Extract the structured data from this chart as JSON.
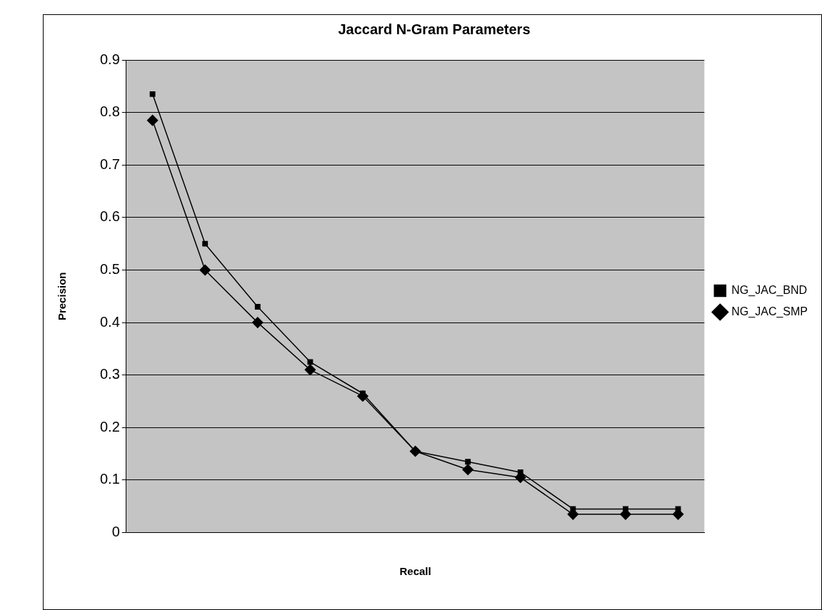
{
  "chart_data": {
    "type": "line",
    "title": "Jaccard N-Gram Parameters",
    "xlabel": "Recall",
    "ylabel": "Precision",
    "categories": [
      null,
      null,
      null,
      null,
      null,
      null,
      null,
      null,
      null,
      null,
      null
    ],
    "series": [
      {
        "name": "NG_JAC_SMP",
        "color": "#000000",
        "marker": "diamond",
        "values": [
          0.785,
          0.5,
          0.4,
          0.31,
          0.26,
          0.155,
          0.12,
          0.105,
          0.035,
          0.035,
          0.035
        ]
      },
      {
        "name": "NG_JAC_BND",
        "color": "#000000",
        "marker": "square",
        "values": [
          0.835,
          0.55,
          0.43,
          0.325,
          0.265,
          0.155,
          0.135,
          0.115,
          0.045,
          0.045,
          0.045
        ]
      }
    ],
    "ylim": [
      0,
      0.9
    ],
    "yticks": [
      0,
      0.1,
      0.2,
      0.3,
      0.4,
      0.5,
      0.6,
      0.7,
      0.8,
      0.9
    ],
    "grid": "y",
    "legend": "right",
    "line_style": "solid"
  }
}
